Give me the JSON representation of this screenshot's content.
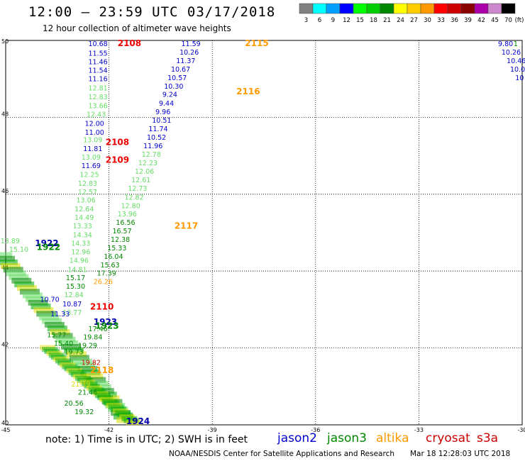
{
  "header": {
    "title": "12:00 — 23:59 UTC 03/17/2018",
    "subtitle": "12 hour collection of altimeter wave heights"
  },
  "legend": {
    "colors": [
      "#808080",
      "#00ffff",
      "#00a0ff",
      "#0000ff",
      "#00ff00",
      "#00cc00",
      "#008800",
      "#ffff00",
      "#ffcc00",
      "#ff9900",
      "#ff0000",
      "#cc0000",
      "#880000",
      "#aa00aa",
      "#cc88cc",
      "#000000"
    ],
    "labels": [
      "3",
      "6",
      "9",
      "12",
      "15",
      "18",
      "21",
      "24",
      "27",
      "30",
      "33",
      "36",
      "39",
      "42",
      "45",
      "70",
      "(ft)"
    ]
  },
  "axes": {
    "x_ticks": [
      "-45",
      "-42",
      "-39",
      "-36",
      "-33",
      "-30"
    ],
    "y_ticks": [
      "50",
      "48",
      "46",
      "44",
      "42",
      "40"
    ]
  },
  "satellites": [
    {
      "name": "jason2",
      "color": "#0000cc"
    },
    {
      "name": "jason3",
      "color": "#008800"
    },
    {
      "name": "altika",
      "color": "#ff9900"
    },
    {
      "name": "cryosat",
      "color": "#cc0000"
    },
    {
      "name": "s3a",
      "color": "#cc0000"
    }
  ],
  "chart_data": {
    "type": "map",
    "xlim": [
      -45,
      -30
    ],
    "ylim": [
      40,
      50
    ],
    "track_labels": [
      {
        "text": "2108",
        "lon": -41.75,
        "lat": 49.85,
        "color": "#ee0000"
      },
      {
        "text": "2115",
        "lon": -38.05,
        "lat": 49.85,
        "color": "#ff9900"
      },
      {
        "text": "2116",
        "lon": -38.3,
        "lat": 48.6,
        "color": "#ff9900"
      },
      {
        "text": "2108",
        "lon": -42.1,
        "lat": 47.28,
        "color": "#ee0000"
      },
      {
        "text": "2109",
        "lon": -42.1,
        "lat": 46.82,
        "color": "#ee0000"
      },
      {
        "text": "2117",
        "lon": -40.1,
        "lat": 45.1,
        "color": "#ff9900"
      },
      {
        "text": "1922",
        "lon": -44.15,
        "lat": 44.65,
        "color": "#0000aa"
      },
      {
        "text": "1922",
        "lon": -44.1,
        "lat": 44.55,
        "color": "#008800"
      },
      {
        "text": "2110",
        "lon": -42.55,
        "lat": 43.0,
        "color": "#ee0000"
      },
      {
        "text": "1923",
        "lon": -42.45,
        "lat": 42.6,
        "color": "#0000aa"
      },
      {
        "text": "1923",
        "lon": -42.4,
        "lat": 42.5,
        "color": "#008800"
      },
      {
        "text": "2118",
        "lon": -42.55,
        "lat": 41.35,
        "color": "#ff9900"
      },
      {
        "text": "1924",
        "lon": -41.5,
        "lat": 40.02,
        "color": "#0000aa"
      }
    ],
    "readings": [
      {
        "text": "10.68",
        "lon": -42.6,
        "lat": 49.85,
        "color": "#0000cc"
      },
      {
        "text": "11.55",
        "lon": -42.6,
        "lat": 49.6,
        "color": "#0000cc"
      },
      {
        "text": "11.46",
        "lon": -42.6,
        "lat": 49.38,
        "color": "#0000cc"
      },
      {
        "text": "11.54",
        "lon": -42.6,
        "lat": 49.16,
        "color": "#0000cc"
      },
      {
        "text": "11.16",
        "lon": -42.6,
        "lat": 48.94,
        "color": "#0000cc"
      },
      {
        "text": "12.81",
        "lon": -42.6,
        "lat": 48.7,
        "color": "#66dd66"
      },
      {
        "text": "12.83",
        "lon": -42.6,
        "lat": 48.47,
        "color": "#66dd66"
      },
      {
        "text": "13.66",
        "lon": -42.6,
        "lat": 48.24,
        "color": "#66dd66"
      },
      {
        "text": "12.43",
        "lon": -42.65,
        "lat": 48.02,
        "color": "#66dd66"
      },
      {
        "text": "12.00",
        "lon": -42.7,
        "lat": 47.78,
        "color": "#0000cc"
      },
      {
        "text": "11.00",
        "lon": -42.7,
        "lat": 47.55,
        "color": "#0000cc"
      },
      {
        "text": "13.09",
        "lon": -42.75,
        "lat": 47.35,
        "color": "#66dd66"
      },
      {
        "text": "11.81",
        "lon": -42.75,
        "lat": 47.12,
        "color": "#0000cc"
      },
      {
        "text": "13.09",
        "lon": -42.8,
        "lat": 46.9,
        "color": "#66dd66"
      },
      {
        "text": "11.69",
        "lon": -42.8,
        "lat": 46.68,
        "color": "#0000cc"
      },
      {
        "text": "12.25",
        "lon": -42.85,
        "lat": 46.45,
        "color": "#66dd66"
      },
      {
        "text": "12.83",
        "lon": -42.9,
        "lat": 46.22,
        "color": "#66dd66"
      },
      {
        "text": "12.57",
        "lon": -42.9,
        "lat": 46.0,
        "color": "#66dd66"
      },
      {
        "text": "13.06",
        "lon": -42.95,
        "lat": 45.78,
        "color": "#66dd66"
      },
      {
        "text": "12.64",
        "lon": -43.0,
        "lat": 45.55,
        "color": "#66dd66"
      },
      {
        "text": "14.49",
        "lon": -43.0,
        "lat": 45.33,
        "color": "#66dd66"
      },
      {
        "text": "13.33",
        "lon": -43.05,
        "lat": 45.11,
        "color": "#66dd66"
      },
      {
        "text": "14.34",
        "lon": -43.05,
        "lat": 44.88,
        "color": "#66dd66"
      },
      {
        "text": "14.33",
        "lon": -43.1,
        "lat": 44.66,
        "color": "#66dd66"
      },
      {
        "text": "12.96",
        "lon": -43.1,
        "lat": 44.44,
        "color": "#66dd66"
      },
      {
        "text": "14.96",
        "lon": -43.15,
        "lat": 44.22,
        "color": "#66dd66"
      },
      {
        "text": "14.81",
        "lon": -43.2,
        "lat": 43.98,
        "color": "#66dd66"
      },
      {
        "text": "15.17",
        "lon": -43.25,
        "lat": 43.76,
        "color": "#008800"
      },
      {
        "text": "15.30",
        "lon": -43.25,
        "lat": 43.54,
        "color": "#008800"
      },
      {
        "text": "12.84",
        "lon": -43.3,
        "lat": 43.32,
        "color": "#66dd66"
      },
      {
        "text": "10.87",
        "lon": -43.35,
        "lat": 43.08,
        "color": "#0000cc"
      },
      {
        "text": "13.77",
        "lon": -43.35,
        "lat": 42.86,
        "color": "#66dd66"
      },
      {
        "text": "11.59",
        "lon": -39.9,
        "lat": 49.85,
        "color": "#0000cc"
      },
      {
        "text": "10.26",
        "lon": -39.95,
        "lat": 49.63,
        "color": "#0000cc"
      },
      {
        "text": "11.37",
        "lon": -40.05,
        "lat": 49.41,
        "color": "#0000cc"
      },
      {
        "text": "10.67",
        "lon": -40.2,
        "lat": 49.19,
        "color": "#0000cc"
      },
      {
        "text": "10.57",
        "lon": -40.3,
        "lat": 48.97,
        "color": "#0000cc"
      },
      {
        "text": "10.30",
        "lon": -40.4,
        "lat": 48.75,
        "color": "#0000cc"
      },
      {
        "text": "9.24",
        "lon": -40.45,
        "lat": 48.53,
        "color": "#0000cc"
      },
      {
        "text": "9.44",
        "lon": -40.55,
        "lat": 48.3,
        "color": "#0000cc"
      },
      {
        "text": "9.96",
        "lon": -40.65,
        "lat": 48.08,
        "color": "#0000cc"
      },
      {
        "text": "10.51",
        "lon": -40.75,
        "lat": 47.86,
        "color": "#0000cc"
      },
      {
        "text": "11.74",
        "lon": -40.85,
        "lat": 47.64,
        "color": "#0000cc"
      },
      {
        "text": "10.52",
        "lon": -40.9,
        "lat": 47.42,
        "color": "#0000cc"
      },
      {
        "text": "11.96",
        "lon": -41.0,
        "lat": 47.2,
        "color": "#0000cc"
      },
      {
        "text": "12.78",
        "lon": -41.05,
        "lat": 46.97,
        "color": "#66dd66"
      },
      {
        "text": "12.23",
        "lon": -41.15,
        "lat": 46.75,
        "color": "#66dd66"
      },
      {
        "text": "12.06",
        "lon": -41.25,
        "lat": 46.53,
        "color": "#66dd66"
      },
      {
        "text": "12.61",
        "lon": -41.35,
        "lat": 46.31,
        "color": "#66dd66"
      },
      {
        "text": "12.73",
        "lon": -41.45,
        "lat": 46.09,
        "color": "#66dd66"
      },
      {
        "text": "12.82",
        "lon": -41.55,
        "lat": 45.86,
        "color": "#66dd66"
      },
      {
        "text": "12.80",
        "lon": -41.65,
        "lat": 45.64,
        "color": "#66dd66"
      },
      {
        "text": "13.96",
        "lon": -41.75,
        "lat": 45.42,
        "color": "#66dd66"
      },
      {
        "text": "16.56",
        "lon": -41.8,
        "lat": 45.2,
        "color": "#008800"
      },
      {
        "text": "16.57",
        "lon": -41.9,
        "lat": 44.98,
        "color": "#008800"
      },
      {
        "text": "12.38",
        "lon": -41.95,
        "lat": 44.76,
        "color": "#008800"
      },
      {
        "text": "15.33",
        "lon": -42.05,
        "lat": 44.54,
        "color": "#008800"
      },
      {
        "text": "16.04",
        "lon": -42.15,
        "lat": 44.32,
        "color": "#008800"
      },
      {
        "text": "15.63",
        "lon": -42.25,
        "lat": 44.1,
        "color": "#008800"
      },
      {
        "text": "17.39",
        "lon": -42.35,
        "lat": 43.88,
        "color": "#008800"
      },
      {
        "text": "26.26",
        "lon": -42.45,
        "lat": 43.66,
        "color": "#ff9900"
      },
      {
        "text": "17.46",
        "lon": -42.6,
        "lat": 42.44,
        "color": "#008800"
      },
      {
        "text": "19.84",
        "lon": -42.75,
        "lat": 42.22,
        "color": "#008800"
      },
      {
        "text": "19.29",
        "lon": -42.9,
        "lat": 42.0,
        "color": "#008800"
      },
      {
        "text": "13.89",
        "lon": -45.15,
        "lat": 44.72,
        "color": "#66dd66"
      },
      {
        "text": "15.10",
        "lon": -44.9,
        "lat": 44.5,
        "color": "#66dd66"
      },
      {
        "text": "10.70",
        "lon": -44.0,
        "lat": 43.2,
        "color": "#0000cc"
      },
      {
        "text": "11.33",
        "lon": -43.7,
        "lat": 42.82,
        "color": "#0000cc"
      },
      {
        "text": "15.77",
        "lon": -43.8,
        "lat": 42.28,
        "color": "#008800"
      },
      {
        "text": "15.40",
        "lon": -43.6,
        "lat": 42.06,
        "color": "#008800"
      },
      {
        "text": "19.73",
        "lon": -43.3,
        "lat": 41.84,
        "color": "#008800"
      },
      {
        "text": "21.39",
        "lon": -43.1,
        "lat": 41.0,
        "color": "#dddd00"
      },
      {
        "text": "21.46",
        "lon": -42.9,
        "lat": 40.78,
        "color": "#008800"
      },
      {
        "text": "20.56",
        "lon": -43.3,
        "lat": 40.5,
        "color": "#008800"
      },
      {
        "text": "19.32",
        "lon": -43.0,
        "lat": 40.28,
        "color": "#008800"
      },
      {
        "text": "19.82",
        "lon": -42.8,
        "lat": 41.56,
        "color": "#cc0000"
      },
      {
        "text": "9.80",
        "lon": -30.7,
        "lat": 49.85,
        "color": "#0000cc"
      },
      {
        "text": "10.26",
        "lon": -30.6,
        "lat": 49.63,
        "color": "#0000cc"
      },
      {
        "text": "10.46",
        "lon": -30.45,
        "lat": 49.41,
        "color": "#0000cc"
      },
      {
        "text": "10.0",
        "lon": -30.35,
        "lat": 49.19,
        "color": "#0000cc"
      },
      {
        "text": "10",
        "lon": -30.2,
        "lat": 48.97,
        "color": "#0000cc"
      },
      {
        "text": "1",
        "lon": -30.25,
        "lat": 49.85,
        "color": "#008800"
      }
    ]
  },
  "notes": {
    "note": "note:  1) Time is in UTC;  2) SWH is in feet",
    "footer": "NOAA/NESDIS Center for Satellite Applications and Research",
    "footer_time": "Mar 18 12:28:03 UTC 2018"
  }
}
